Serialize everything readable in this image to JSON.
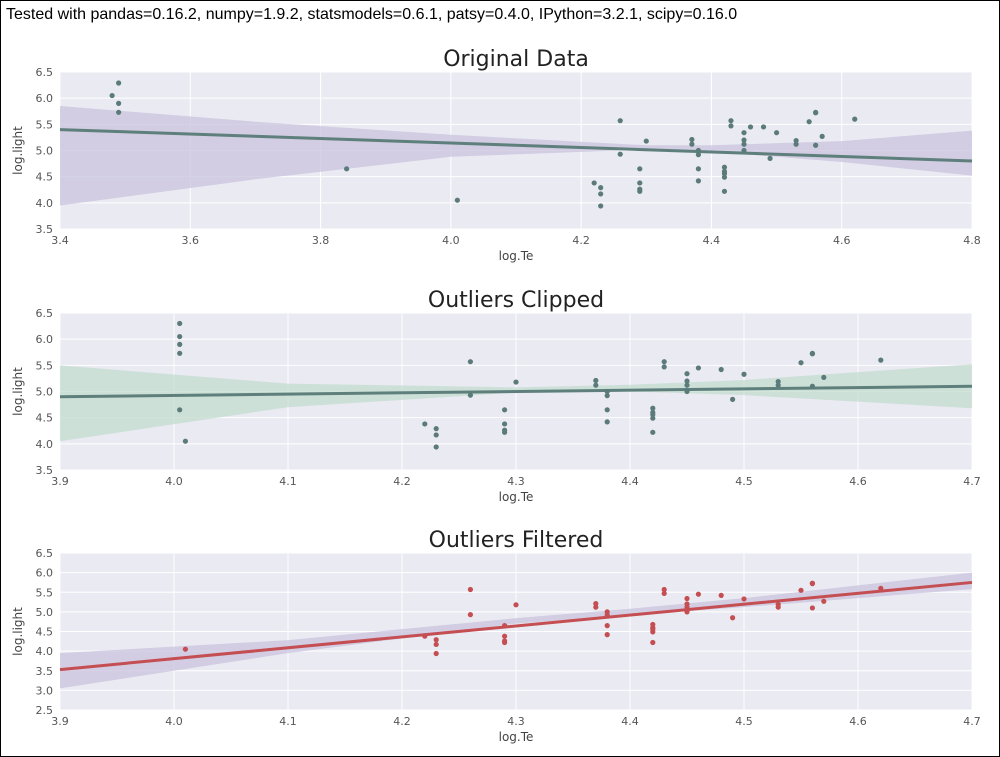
{
  "header": {
    "text": "Tested with pandas=0.16.2, numpy=1.9.2, statsmodels=0.6.1, patsy=0.4.0, IPython=3.2.1, scipy=0.16.0"
  },
  "colors": {
    "panel_bg": "#eaeaf2",
    "grid": "#ffffff",
    "points_gray": "#5b7a7a",
    "line_gray": "#5f7f7c",
    "ci_purple": "#c9c3de",
    "ci_green": "#c3dccf",
    "points_red": "#c44e52",
    "line_red": "#c44e52"
  },
  "chart_data": [
    {
      "type": "scatter",
      "title": "Original Data",
      "xlabel": "log.Te",
      "ylabel": "log.light",
      "xlim": [
        3.4,
        4.8
      ],
      "ylim": [
        3.5,
        6.5
      ],
      "xticks": [
        "3.4",
        "3.6",
        "3.8",
        "4.0",
        "4.2",
        "4.4",
        "4.6",
        "4.8"
      ],
      "yticks": [
        "3.5",
        "4.0",
        "4.5",
        "5.0",
        "5.5",
        "6.0",
        "6.5"
      ],
      "grid": true,
      "point_color": "#5b7a7a",
      "line_color": "#5f7f7c",
      "ci_color": "#c9c3de",
      "points": [
        [
          3.48,
          6.05
        ],
        [
          3.49,
          6.29
        ],
        [
          3.49,
          5.9
        ],
        [
          3.49,
          5.73
        ],
        [
          3.84,
          4.65
        ],
        [
          4.01,
          4.05
        ],
        [
          4.22,
          4.38
        ],
        [
          4.23,
          4.29
        ],
        [
          4.23,
          4.17
        ],
        [
          4.23,
          3.94
        ],
        [
          4.26,
          4.93
        ],
        [
          4.26,
          5.57
        ],
        [
          4.29,
          4.65
        ],
        [
          4.29,
          4.38
        ],
        [
          4.29,
          4.26
        ],
        [
          4.29,
          4.22
        ],
        [
          4.3,
          5.18
        ],
        [
          4.37,
          5.21
        ],
        [
          4.37,
          5.12
        ],
        [
          4.38,
          5.0
        ],
        [
          4.38,
          4.92
        ],
        [
          4.38,
          4.65
        ],
        [
          4.38,
          4.42
        ],
        [
          4.42,
          4.6
        ],
        [
          4.42,
          4.68
        ],
        [
          4.42,
          4.56
        ],
        [
          4.42,
          4.49
        ],
        [
          4.42,
          4.22
        ],
        [
          4.43,
          5.57
        ],
        [
          4.43,
          5.47
        ],
        [
          4.45,
          5.34
        ],
        [
          4.45,
          5.2
        ],
        [
          4.45,
          5.12
        ],
        [
          4.45,
          5.0
        ],
        [
          4.46,
          5.45
        ],
        [
          4.48,
          5.45
        ],
        [
          4.49,
          4.85
        ],
        [
          4.5,
          5.34
        ],
        [
          4.53,
          5.19
        ],
        [
          4.53,
          5.12
        ],
        [
          4.55,
          5.55
        ],
        [
          4.56,
          5.73
        ],
        [
          4.56,
          5.72
        ],
        [
          4.56,
          5.1
        ],
        [
          4.57,
          5.27
        ],
        [
          4.62,
          5.6
        ]
      ],
      "fit": {
        "x": [
          3.4,
          4.8
        ],
        "y": [
          5.4,
          4.8
        ]
      },
      "ci": {
        "x": [
          3.4,
          3.7,
          4.0,
          4.3,
          4.4,
          4.6,
          4.8
        ],
        "lower": [
          3.95,
          4.45,
          4.88,
          5.02,
          4.98,
          4.78,
          4.52
        ],
        "upper": [
          5.85,
          5.55,
          5.3,
          5.1,
          5.1,
          5.18,
          5.38
        ]
      }
    },
    {
      "type": "scatter",
      "title": "Outliers Clipped",
      "xlabel": "log.Te",
      "ylabel": "log.light",
      "xlim": [
        3.9,
        4.7
      ],
      "ylim": [
        3.5,
        6.5
      ],
      "xticks": [
        "3.9",
        "4.0",
        "4.1",
        "4.2",
        "4.3",
        "4.4",
        "4.5",
        "4.6",
        "4.7"
      ],
      "yticks": [
        "3.5",
        "4.0",
        "4.5",
        "5.0",
        "5.5",
        "6.0",
        "6.5"
      ],
      "grid": true,
      "point_color": "#5b7a7a",
      "line_color": "#5f7f7c",
      "ci_color": "#c3dccf",
      "points": [
        [
          4.005,
          6.3
        ],
        [
          4.005,
          6.05
        ],
        [
          4.005,
          5.9
        ],
        [
          4.005,
          5.73
        ],
        [
          4.005,
          4.65
        ],
        [
          4.01,
          4.05
        ],
        [
          4.22,
          4.38
        ],
        [
          4.23,
          4.29
        ],
        [
          4.23,
          4.17
        ],
        [
          4.23,
          3.94
        ],
        [
          4.26,
          4.93
        ],
        [
          4.26,
          5.57
        ],
        [
          4.29,
          4.65
        ],
        [
          4.29,
          4.38
        ],
        [
          4.29,
          4.26
        ],
        [
          4.29,
          4.22
        ],
        [
          4.3,
          5.18
        ],
        [
          4.37,
          5.21
        ],
        [
          4.37,
          5.12
        ],
        [
          4.38,
          5.0
        ],
        [
          4.38,
          4.92
        ],
        [
          4.38,
          4.65
        ],
        [
          4.38,
          4.42
        ],
        [
          4.42,
          4.6
        ],
        [
          4.42,
          4.68
        ],
        [
          4.42,
          4.56
        ],
        [
          4.42,
          4.49
        ],
        [
          4.42,
          4.22
        ],
        [
          4.43,
          5.57
        ],
        [
          4.43,
          5.47
        ],
        [
          4.45,
          5.34
        ],
        [
          4.45,
          5.2
        ],
        [
          4.45,
          5.12
        ],
        [
          4.45,
          5.0
        ],
        [
          4.46,
          5.45
        ],
        [
          4.48,
          5.42
        ],
        [
          4.49,
          4.85
        ],
        [
          4.5,
          5.33
        ],
        [
          4.53,
          5.19
        ],
        [
          4.53,
          5.12
        ],
        [
          4.55,
          5.55
        ],
        [
          4.56,
          5.73
        ],
        [
          4.56,
          5.72
        ],
        [
          4.56,
          5.1
        ],
        [
          4.57,
          5.27
        ],
        [
          4.62,
          5.6
        ]
      ],
      "fit": {
        "x": [
          3.9,
          4.7
        ],
        "y": [
          4.9,
          5.1
        ]
      },
      "ci": {
        "x": [
          3.9,
          4.1,
          4.3,
          4.4,
          4.5,
          4.7
        ],
        "lower": [
          4.05,
          4.7,
          4.98,
          5.0,
          4.93,
          4.68
        ],
        "upper": [
          5.5,
          5.15,
          5.08,
          5.13,
          5.22,
          5.52
        ]
      }
    },
    {
      "type": "scatter",
      "title": "Outliers Filtered",
      "xlabel": "log.Te",
      "ylabel": "log.light",
      "xlim": [
        3.9,
        4.7
      ],
      "ylim": [
        2.5,
        6.5
      ],
      "xticks": [
        "3.9",
        "4.0",
        "4.1",
        "4.2",
        "4.3",
        "4.4",
        "4.5",
        "4.6",
        "4.7"
      ],
      "yticks": [
        "2.5",
        "3.0",
        "3.5",
        "4.0",
        "4.5",
        "5.0",
        "5.5",
        "6.0",
        "6.5"
      ],
      "grid": true,
      "point_color": "#c44e52",
      "line_color": "#c44e52",
      "ci_color": "#c9c3de",
      "points": [
        [
          4.01,
          4.05
        ],
        [
          4.22,
          4.38
        ],
        [
          4.23,
          4.29
        ],
        [
          4.23,
          4.17
        ],
        [
          4.23,
          3.94
        ],
        [
          4.26,
          4.93
        ],
        [
          4.26,
          5.57
        ],
        [
          4.29,
          4.65
        ],
        [
          4.29,
          4.38
        ],
        [
          4.29,
          4.26
        ],
        [
          4.29,
          4.22
        ],
        [
          4.3,
          5.18
        ],
        [
          4.37,
          5.21
        ],
        [
          4.37,
          5.12
        ],
        [
          4.38,
          5.0
        ],
        [
          4.38,
          4.92
        ],
        [
          4.38,
          4.65
        ],
        [
          4.38,
          4.42
        ],
        [
          4.42,
          4.6
        ],
        [
          4.42,
          4.68
        ],
        [
          4.42,
          4.56
        ],
        [
          4.42,
          4.49
        ],
        [
          4.42,
          4.22
        ],
        [
          4.43,
          5.57
        ],
        [
          4.43,
          5.47
        ],
        [
          4.45,
          5.34
        ],
        [
          4.45,
          5.2
        ],
        [
          4.45,
          5.12
        ],
        [
          4.45,
          5.0
        ],
        [
          4.46,
          5.45
        ],
        [
          4.48,
          5.42
        ],
        [
          4.49,
          4.85
        ],
        [
          4.5,
          5.33
        ],
        [
          4.53,
          5.19
        ],
        [
          4.53,
          5.12
        ],
        [
          4.55,
          5.55
        ],
        [
          4.56,
          5.73
        ],
        [
          4.56,
          5.72
        ],
        [
          4.56,
          5.1
        ],
        [
          4.57,
          5.27
        ],
        [
          4.62,
          5.6
        ]
      ],
      "fit": {
        "x": [
          3.9,
          4.7
        ],
        "y": [
          3.53,
          5.75
        ]
      },
      "ci": {
        "x": [
          3.9,
          4.1,
          4.3,
          4.4,
          4.5,
          4.7
        ],
        "lower": [
          3.05,
          3.95,
          4.7,
          4.92,
          5.12,
          5.58
        ],
        "upper": [
          3.95,
          4.28,
          4.84,
          5.08,
          5.35,
          6.0
        ]
      }
    }
  ]
}
